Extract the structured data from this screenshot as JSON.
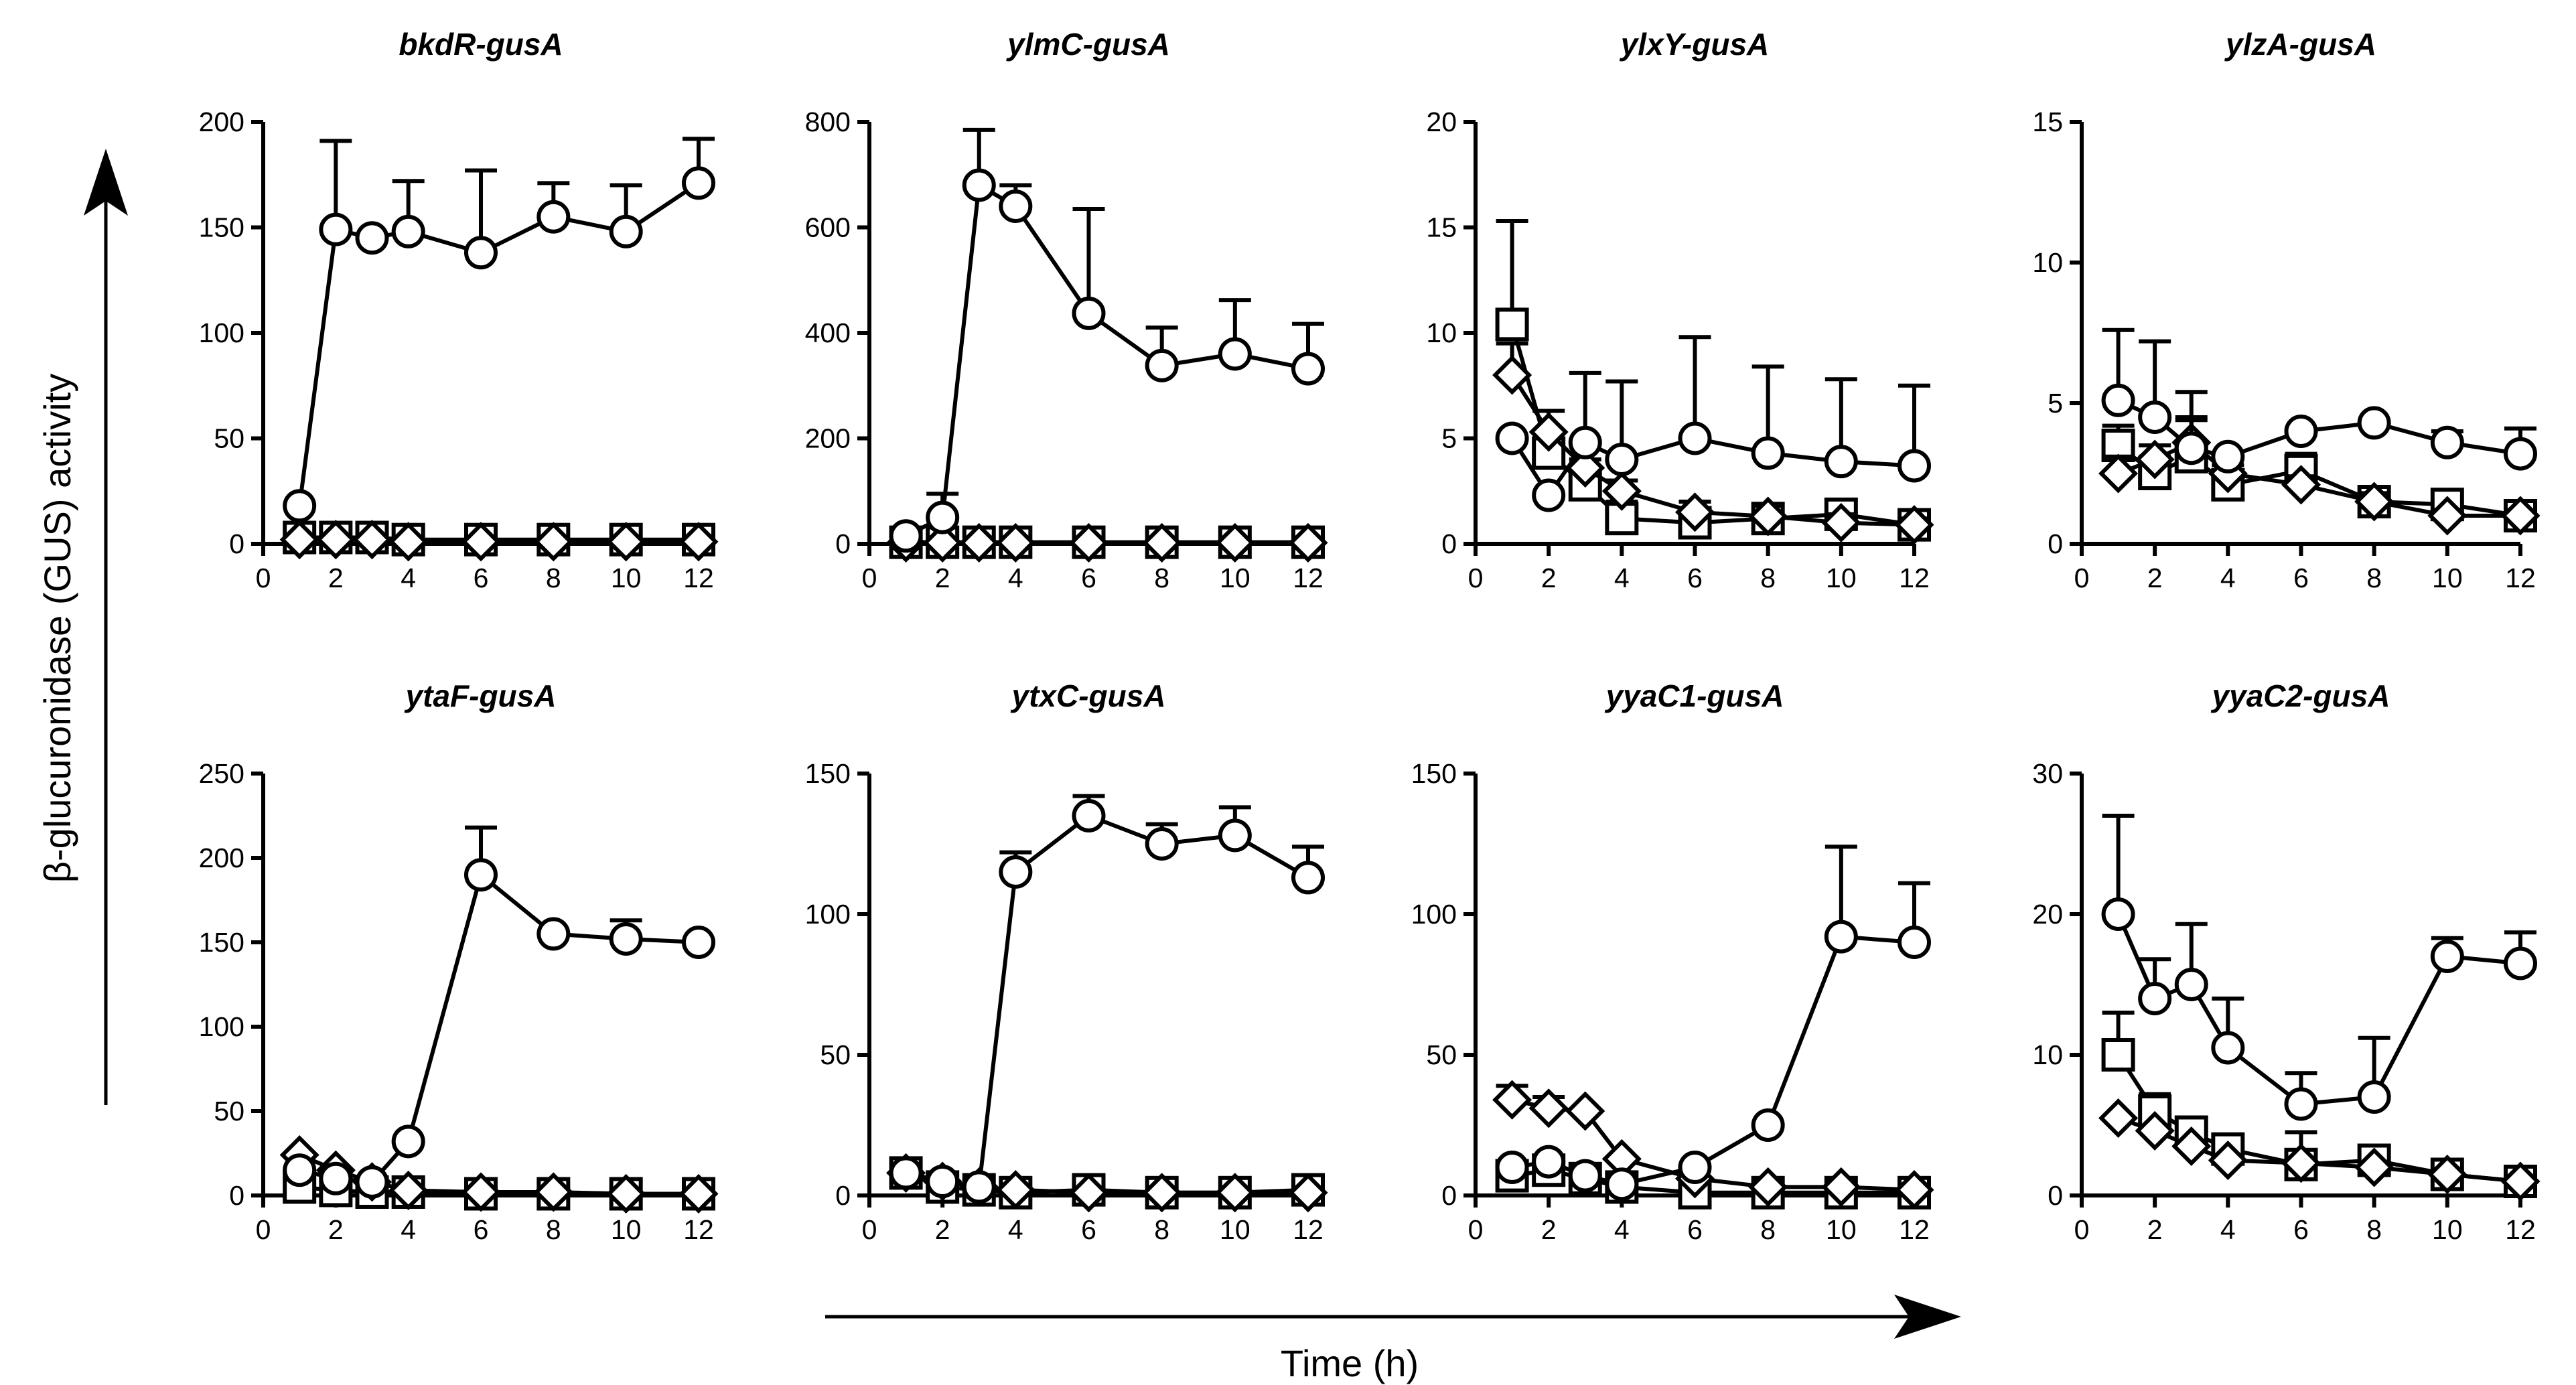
{
  "figure": {
    "ylabel": "β-glucuronidase (GUS) activity",
    "xlabel": "Time (h)"
  },
  "chart_data": [
    {
      "type": "line",
      "title": "bkdR-gusA",
      "xlim": [
        0,
        12
      ],
      "ylim": [
        0,
        200
      ],
      "xticks": [
        0,
        2,
        4,
        6,
        8,
        10,
        12
      ],
      "yticks": [
        0,
        50,
        100,
        150,
        200
      ],
      "series": [
        {
          "name": "square",
          "marker": "square",
          "x": [
            1,
            2,
            3,
            4,
            6,
            8,
            10,
            12
          ],
          "y": [
            3,
            3,
            3,
            2,
            2,
            2,
            2,
            2
          ]
        },
        {
          "name": "diamond",
          "marker": "diamond",
          "x": [
            1,
            2,
            3,
            4,
            6,
            8,
            10,
            12
          ],
          "y": [
            2,
            2,
            2,
            1,
            1,
            1,
            1,
            1
          ]
        },
        {
          "name": "circle",
          "marker": "circle",
          "x": [
            1,
            2,
            3,
            4,
            6,
            8,
            10,
            12
          ],
          "y": [
            18,
            149,
            145,
            148,
            138,
            155,
            148,
            171
          ],
          "err": [
            0,
            42,
            0,
            24,
            39,
            16,
            22,
            21
          ]
        }
      ]
    },
    {
      "type": "line",
      "title": "ylmC-gusA",
      "xlim": [
        0,
        12
      ],
      "ylim": [
        0,
        800
      ],
      "xticks": [
        0,
        2,
        4,
        6,
        8,
        10,
        12
      ],
      "yticks": [
        0,
        200,
        400,
        600,
        800
      ],
      "series": [
        {
          "name": "square",
          "marker": "square",
          "x": [
            1,
            2,
            3,
            4,
            6,
            8,
            10,
            12
          ],
          "y": [
            3,
            3,
            3,
            3,
            3,
            3,
            3,
            3
          ]
        },
        {
          "name": "diamond",
          "marker": "diamond",
          "x": [
            1,
            2,
            3,
            4,
            6,
            8,
            10,
            12
          ],
          "y": [
            2,
            2,
            2,
            2,
            2,
            2,
            2,
            2
          ]
        },
        {
          "name": "circle",
          "marker": "circle",
          "x": [
            1,
            2,
            3,
            4,
            6,
            8,
            10,
            12
          ],
          "y": [
            15,
            50,
            680,
            640,
            437,
            338,
            360,
            332
          ],
          "err": [
            0,
            45,
            105,
            40,
            198,
            72,
            102,
            85
          ]
        }
      ]
    },
    {
      "type": "line",
      "title": "ylxY-gusA",
      "xlim": [
        0,
        12
      ],
      "ylim": [
        0,
        20
      ],
      "xticks": [
        0,
        2,
        4,
        6,
        8,
        10,
        12
      ],
      "yticks": [
        0,
        5,
        10,
        15,
        20
      ],
      "series": [
        {
          "name": "square",
          "marker": "square",
          "x": [
            1,
            2,
            3,
            4,
            6,
            8,
            10,
            12
          ],
          "y": [
            10.4,
            4.3,
            2.8,
            1.2,
            1.0,
            1.2,
            1.4,
            0.9
          ],
          "err": [
            4.9,
            1.0,
            1.2,
            0.8,
            0.5,
            0.5,
            0.5,
            0.3
          ]
        },
        {
          "name": "diamond",
          "marker": "diamond",
          "x": [
            1,
            2,
            3,
            4,
            6,
            8,
            10,
            12
          ],
          "y": [
            8.0,
            5.3,
            3.6,
            2.5,
            1.5,
            1.3,
            1.0,
            0.9
          ],
          "err": [
            1.5,
            1.0,
            1.0,
            0.5,
            0.5,
            0.5,
            0.4,
            0.3
          ]
        },
        {
          "name": "circle",
          "marker": "circle",
          "x": [
            1,
            2,
            3,
            4,
            6,
            8,
            10,
            12
          ],
          "y": [
            5.0,
            2.3,
            4.8,
            4.0,
            5.0,
            4.3,
            3.9,
            3.7
          ],
          "err": [
            0,
            0,
            3.3,
            3.7,
            4.8,
            4.1,
            3.9,
            3.8
          ]
        }
      ]
    },
    {
      "type": "line",
      "title": "ylzA-gusA",
      "xlim": [
        0,
        12
      ],
      "ylim": [
        0,
        15
      ],
      "xticks": [
        0,
        2,
        4,
        6,
        8,
        10,
        12
      ],
      "yticks": [
        0,
        5,
        10,
        15
      ],
      "series": [
        {
          "name": "square",
          "marker": "square",
          "x": [
            1,
            2,
            3,
            4,
            6,
            8,
            10,
            12
          ],
          "y": [
            3.5,
            2.5,
            3.1,
            2.1,
            2.6,
            1.5,
            1.4,
            1.0
          ],
          "err": [
            0.7,
            0.6,
            1.4,
            0.4,
            0.6,
            0.4,
            0.4,
            0.2
          ]
        },
        {
          "name": "diamond",
          "marker": "diamond",
          "x": [
            1,
            2,
            3,
            4,
            6,
            8,
            10,
            12
          ],
          "y": [
            2.5,
            3.0,
            3.6,
            2.5,
            2.1,
            1.5,
            1.0,
            1.0
          ],
          "err": [
            0.6,
            0.5,
            0.8,
            0.3,
            0.3,
            0.3,
            0.2,
            0.1
          ]
        },
        {
          "name": "circle",
          "marker": "circle",
          "x": [
            1,
            2,
            3,
            4,
            6,
            8,
            10,
            12
          ],
          "y": [
            5.1,
            4.5,
            3.4,
            3.1,
            4.0,
            4.3,
            3.6,
            3.2
          ],
          "err": [
            2.5,
            2.7,
            2.0,
            0,
            0,
            0,
            0.4,
            0.9
          ]
        }
      ]
    },
    {
      "type": "line",
      "title": "ytaF-gusA",
      "xlim": [
        0,
        12
      ],
      "ylim": [
        0,
        250
      ],
      "xticks": [
        0,
        2,
        4,
        6,
        8,
        10,
        12
      ],
      "yticks": [
        0,
        50,
        100,
        150,
        200,
        250
      ],
      "series": [
        {
          "name": "square",
          "marker": "square",
          "x": [
            1,
            2,
            3,
            4,
            6,
            8,
            10,
            12
          ],
          "y": [
            5,
            3,
            2,
            2,
            1,
            1,
            1,
            1
          ]
        },
        {
          "name": "diamond",
          "marker": "diamond",
          "x": [
            1,
            2,
            3,
            4,
            6,
            8,
            10,
            12
          ],
          "y": [
            24,
            15,
            8,
            3,
            2,
            2,
            1,
            1
          ]
        },
        {
          "name": "circle",
          "marker": "circle",
          "x": [
            1,
            2,
            3,
            4,
            6,
            8,
            10,
            12
          ],
          "y": [
            15,
            10,
            8,
            32,
            190,
            155,
            152,
            150
          ],
          "err": [
            0,
            0,
            0,
            0,
            28,
            0,
            11,
            0
          ]
        }
      ]
    },
    {
      "type": "line",
      "title": "ytxC-gusA",
      "xlim": [
        0,
        12
      ],
      "ylim": [
        0,
        150
      ],
      "xticks": [
        0,
        2,
        4,
        6,
        8,
        10,
        12
      ],
      "yticks": [
        0,
        50,
        100,
        150
      ],
      "series": [
        {
          "name": "square",
          "marker": "square",
          "x": [
            1,
            2,
            3,
            4,
            6,
            8,
            10,
            12
          ],
          "y": [
            8,
            3,
            2,
            1,
            2,
            1,
            1,
            2
          ]
        },
        {
          "name": "diamond",
          "marker": "diamond",
          "x": [
            1,
            2,
            3,
            4,
            6,
            8,
            10,
            12
          ],
          "y": [
            8,
            5,
            3,
            2,
            1,
            1,
            1,
            1
          ]
        },
        {
          "name": "circle",
          "marker": "circle",
          "x": [
            1,
            2,
            3,
            4,
            6,
            8,
            10,
            12
          ],
          "y": [
            8,
            5,
            3,
            115,
            135,
            125,
            128,
            113
          ],
          "err": [
            0,
            0,
            0,
            7,
            7,
            7,
            10,
            11
          ]
        }
      ]
    },
    {
      "type": "line",
      "title": "yyaC1-gusA",
      "xlim": [
        0,
        12
      ],
      "ylim": [
        0,
        150
      ],
      "xticks": [
        0,
        2,
        4,
        6,
        8,
        10,
        12
      ],
      "yticks": [
        0,
        50,
        100,
        150
      ],
      "series": [
        {
          "name": "square",
          "marker": "square",
          "x": [
            1,
            2,
            3,
            4,
            6,
            8,
            10,
            12
          ],
          "y": [
            7,
            9,
            6,
            3,
            1,
            1,
            1,
            1
          ]
        },
        {
          "name": "diamond",
          "marker": "diamond",
          "x": [
            1,
            2,
            3,
            4,
            6,
            8,
            10,
            12
          ],
          "y": [
            34,
            31,
            30,
            13,
            6,
            3,
            3,
            2
          ],
          "err": [
            5,
            4,
            0,
            0,
            0,
            0,
            0,
            0
          ]
        },
        {
          "name": "circle",
          "marker": "circle",
          "x": [
            1,
            2,
            3,
            4,
            6,
            8,
            10,
            12
          ],
          "y": [
            10,
            12,
            7,
            4,
            10,
            25,
            92,
            90
          ],
          "err": [
            0,
            0,
            0,
            0,
            0,
            0,
            32,
            21
          ]
        }
      ]
    },
    {
      "type": "line",
      "title": "yyaC2-gusA",
      "xlim": [
        0,
        12
      ],
      "ylim": [
        0,
        30
      ],
      "xticks": [
        0,
        2,
        4,
        6,
        8,
        10,
        12
      ],
      "yticks": [
        0,
        10,
        20,
        30
      ],
      "series": [
        {
          "name": "square",
          "marker": "square",
          "x": [
            1,
            2,
            3,
            4,
            6,
            8,
            10,
            12
          ],
          "y": [
            10,
            6,
            4.5,
            3.3,
            2.2,
            2.5,
            1.5,
            1.0
          ],
          "err": [
            3,
            1.2,
            0.8,
            0.8,
            2.3,
            0.8,
            0.4,
            0.2
          ]
        },
        {
          "name": "diamond",
          "marker": "diamond",
          "x": [
            1,
            2,
            3,
            4,
            6,
            8,
            10,
            12
          ],
          "y": [
            5.5,
            4.6,
            3.5,
            2.5,
            2.3,
            2.0,
            1.5,
            1.0
          ]
        },
        {
          "name": "circle",
          "marker": "circle",
          "x": [
            1,
            2,
            3,
            4,
            6,
            8,
            10,
            12
          ],
          "y": [
            20,
            14,
            15,
            10.5,
            6.5,
            7,
            17,
            16.5
          ],
          "err": [
            7,
            2.8,
            4.3,
            3.5,
            2.2,
            4.2,
            1.3,
            2.2
          ]
        }
      ]
    }
  ]
}
